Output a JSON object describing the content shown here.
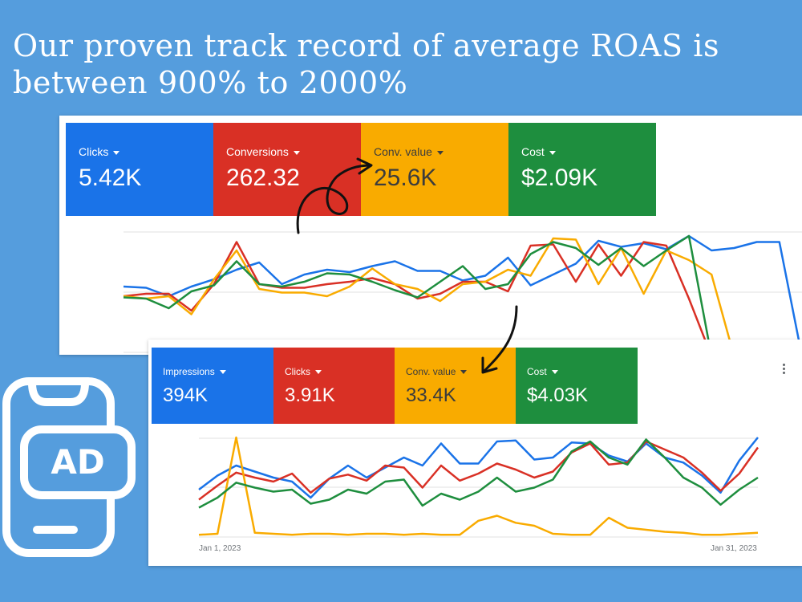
{
  "headline": "Our proven track record of average ROAS is between 900% to 2000%",
  "colors": {
    "background": "#559ddd",
    "blue": "#1a73e8",
    "red": "#d93025",
    "yellow": "#f9ab00",
    "green": "#1e8e3e"
  },
  "icons": {
    "ad": "ad-phone-icon",
    "arrow": "hand-drawn-arrow-icon",
    "more": "more-vert-icon"
  },
  "panel1": {
    "tiles": [
      {
        "metric": "Clicks",
        "value": "5.42K"
      },
      {
        "metric": "Conversions",
        "value": "262.32"
      },
      {
        "metric": "Conv. value",
        "value": "25.6K"
      },
      {
        "metric": "Cost",
        "value": "$2.09K"
      }
    ]
  },
  "panel2": {
    "tiles": [
      {
        "metric": "Impressions",
        "value": "394K"
      },
      {
        "metric": "Clicks",
        "value": "3.91K"
      },
      {
        "metric": "Conv. value",
        "value": "33.4K"
      },
      {
        "metric": "Cost",
        "value": "$4.03K"
      }
    ],
    "x_start": "Jan 1, 2023",
    "x_end": "Jan 31, 2023"
  },
  "chart_data": [
    {
      "type": "line",
      "series": [
        {
          "name": "Clicks",
          "color": "#1a73e8",
          "values": [
            58,
            57,
            50,
            58,
            64,
            72,
            78,
            60,
            68,
            72,
            70,
            75,
            79,
            71,
            71,
            63,
            67,
            82,
            59,
            68,
            77,
            96,
            91,
            94,
            89,
            100,
            88,
            90,
            95,
            95,
            0
          ]
        },
        {
          "name": "Conversions",
          "color": "#d93025",
          "values": [
            50,
            52,
            52,
            38,
            60,
            95,
            60,
            57,
            57,
            60,
            62,
            65,
            60,
            48,
            52,
            62,
            62,
            54,
            92,
            93,
            62,
            93,
            67,
            95,
            92,
            48,
            0
          ]
        },
        {
          "name": "Conv. value",
          "color": "#f9ab00",
          "values": [
            50,
            48,
            50,
            35,
            64,
            88,
            56,
            53,
            53,
            50,
            58,
            73,
            60,
            56,
            46,
            60,
            62,
            72,
            67,
            98,
            97,
            60,
            90,
            52,
            88,
            80,
            68,
            0
          ]
        },
        {
          "name": "Cost",
          "color": "#1e8e3e",
          "values": [
            49,
            48,
            40,
            54,
            59,
            79,
            60,
            58,
            62,
            69,
            68,
            62,
            55,
            49,
            62,
            75,
            56,
            60,
            85,
            95,
            90,
            76,
            90,
            75,
            88,
            100,
            0
          ]
        }
      ]
    },
    {
      "type": "line",
      "x_range": [
        "Jan 1, 2023",
        "Jan 31, 2023"
      ],
      "series": [
        {
          "name": "Impressions",
          "color": "#1a73e8",
          "values": [
            48,
            62,
            72,
            66,
            60,
            56,
            40,
            59,
            72,
            60,
            70,
            80,
            72,
            94,
            74,
            74,
            96,
            97,
            78,
            80,
            95,
            94,
            82,
            76,
            94,
            80,
            75,
            62,
            45,
            77,
            100
          ]
        },
        {
          "name": "Clicks",
          "color": "#d93025",
          "values": [
            38,
            52,
            65,
            60,
            56,
            64,
            45,
            59,
            63,
            57,
            72,
            70,
            50,
            72,
            57,
            64,
            74,
            68,
            60,
            66,
            85,
            94,
            73,
            75,
            96,
            88,
            80,
            65,
            47,
            64,
            90
          ]
        },
        {
          "name": "Conv. value",
          "color": "#f9ab00",
          "values": [
            3,
            4,
            100,
            5,
            4,
            3,
            4,
            4,
            3,
            4,
            4,
            3,
            4,
            3,
            3,
            17,
            22,
            15,
            12,
            4,
            3,
            3,
            20,
            10,
            8,
            6,
            5,
            3,
            3,
            4,
            5
          ]
        },
        {
          "name": "Cost",
          "color": "#1e8e3e",
          "values": [
            30,
            40,
            55,
            50,
            46,
            48,
            34,
            38,
            48,
            44,
            56,
            58,
            32,
            44,
            38,
            46,
            60,
            46,
            50,
            58,
            86,
            96,
            80,
            73,
            98,
            80,
            60,
            50,
            33,
            48,
            60
          ]
        }
      ]
    }
  ]
}
